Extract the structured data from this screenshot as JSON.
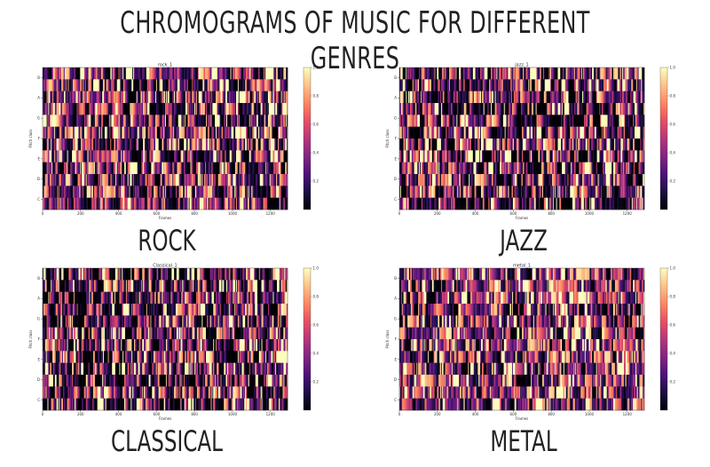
{
  "page": {
    "title": "CHROMOGRAMS OF  MUSIC FOR DIFFERENT GENRES"
  },
  "colormap": [
    "#000004",
    "#1c1044",
    "#4f127b",
    "#812581",
    "#b5367a",
    "#e55064",
    "#fb8761",
    "#fec287",
    "#fcfdbf"
  ],
  "chart_data": [
    {
      "type": "heatmap",
      "genre_label": "ROCK",
      "title": "rock_1",
      "xlabel": "Frames",
      "ylabel": "Pitch class",
      "xlim": [
        0,
        1290
      ],
      "x_ticks": [
        "0",
        "200",
        "400",
        "600",
        "800",
        "1000",
        "1200"
      ],
      "y_ticks": [
        "C",
        "D",
        "E",
        "F",
        "G",
        "A",
        "B"
      ],
      "colorbar_ticks": [
        "0.2",
        "0.4",
        "0.6",
        "0.8",
        "1.0"
      ],
      "vlim": [
        0,
        1
      ],
      "rows": 12,
      "columns": 300,
      "seed": 11,
      "bright_bias": 0.0
    },
    {
      "type": "heatmap",
      "genre_label": "JAZZ",
      "title": "jazz_1",
      "xlabel": "Frames",
      "ylabel": "Pitch class",
      "xlim": [
        0,
        1290
      ],
      "x_ticks": [
        "0",
        "200",
        "400",
        "600",
        "800",
        "1000",
        "1200"
      ],
      "y_ticks": [
        "C",
        "D",
        "E",
        "F",
        "G",
        "A",
        "B"
      ],
      "colorbar_ticks": [
        "0.2",
        "0.4",
        "0.6",
        "0.8",
        "1.0"
      ],
      "vlim": [
        0,
        1
      ],
      "rows": 12,
      "columns": 300,
      "seed": 23,
      "bright_bias": -0.1
    },
    {
      "type": "heatmap",
      "genre_label": "CLASSICAL",
      "title": "Classical_1",
      "xlabel": "Frames",
      "ylabel": "Pitch class",
      "xlim": [
        0,
        1290
      ],
      "x_ticks": [
        "0",
        "200",
        "400",
        "600",
        "800",
        "1000",
        "1200"
      ],
      "y_ticks": [
        "C",
        "D",
        "E",
        "F",
        "G",
        "A",
        "B"
      ],
      "colorbar_ticks": [
        "0.2",
        "0.4",
        "0.6",
        "0.8",
        "1.0"
      ],
      "vlim": [
        0,
        1
      ],
      "rows": 12,
      "columns": 300,
      "seed": 37,
      "bright_bias": -0.2
    },
    {
      "type": "heatmap",
      "genre_label": "METAL",
      "title": "metal_1",
      "xlabel": "Frames",
      "ylabel": "Pitch class",
      "xlim": [
        0,
        1290
      ],
      "x_ticks": [
        "0",
        "200",
        "400",
        "600",
        "800",
        "1000",
        "1200"
      ],
      "y_ticks": [
        "C",
        "D",
        "E",
        "F",
        "G",
        "A",
        "B"
      ],
      "colorbar_ticks": [
        "0.2",
        "0.4",
        "0.6",
        "0.8",
        "1.0"
      ],
      "vlim": [
        0,
        1
      ],
      "rows": 12,
      "columns": 300,
      "seed": 53,
      "bright_bias": 0.15
    }
  ]
}
